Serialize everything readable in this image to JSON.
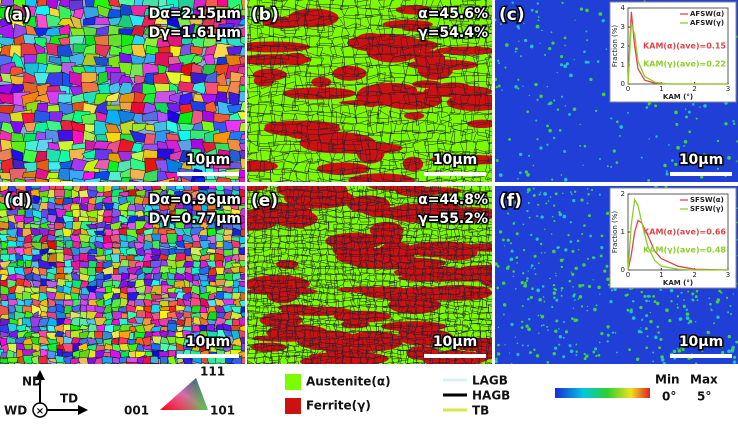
{
  "panels": [
    {
      "label": "(a)",
      "notes": [
        "Dα=2.15μm",
        "Dγ=1.61μm"
      ],
      "scale_bar": "10μm"
    },
    {
      "label": "(b)",
      "notes": [
        "α=45.6%",
        "γ=54.4%"
      ],
      "scale_bar": "10μm"
    },
    {
      "label": "(c)",
      "scale_bar": "10μm",
      "inset": {
        "type": "line",
        "x_label": "KAM (°)",
        "y_label": "Fraction (%)",
        "x": [
          0,
          0.1,
          0.2,
          0.3,
          0.5,
          0.8,
          1.2,
          2,
          3
        ],
        "series": [
          {
            "name": "AFSW(α)",
            "color": "#e0454a",
            "values": [
              0,
              3.8,
              2.0,
              0.8,
              0.2,
              0.05,
              0,
              0,
              0
            ]
          },
          {
            "name": "AFSW(γ)",
            "color": "#8ccf2a",
            "values": [
              0,
              3.2,
              2.6,
              1.2,
              0.4,
              0.1,
              0,
              0,
              0
            ]
          }
        ],
        "notes": [
          "KAM(α)(ave)=0.15",
          "KAM(γ)(ave)=0.22"
        ],
        "xlim": [
          0,
          3
        ],
        "ylim": [
          0,
          4
        ],
        "xticks": [
          0,
          1,
          2,
          3
        ],
        "yticks": [
          0,
          1,
          2,
          3,
          4
        ]
      }
    },
    {
      "label": "(d)",
      "notes": [
        "Dα=0.96μm",
        "Dγ=0.77μm"
      ],
      "scale_bar": "10μm"
    },
    {
      "label": "(e)",
      "notes": [
        "α=44.8%",
        "γ=55.2%"
      ],
      "scale_bar": "10μm"
    },
    {
      "label": "(f)",
      "scale_bar": "10μm",
      "inset": {
        "type": "line",
        "x_label": "KAM (°)",
        "y_label": "Fraction (%)",
        "x": [
          0,
          0.1,
          0.2,
          0.3,
          0.4,
          0.6,
          0.8,
          1.0,
          1.5,
          2,
          3
        ],
        "series": [
          {
            "name": "SFSW(α)",
            "color": "#e0454a",
            "values": [
              0,
              0.4,
              1.0,
              1.3,
              1.25,
              0.9,
              0.5,
              0.3,
              0.1,
              0.02,
              0
            ]
          },
          {
            "name": "SFSW(γ)",
            "color": "#8ccf2a",
            "values": [
              0,
              1.2,
              1.85,
              1.7,
              1.3,
              0.6,
              0.25,
              0.1,
              0.02,
              0,
              0
            ]
          }
        ],
        "notes": [
          "KAM(α)(ave)=0.66",
          "KAM(γ)(ave)=0.48"
        ],
        "xlim": [
          0,
          3
        ],
        "ylim": [
          0,
          2
        ],
        "xticks": [
          0,
          1,
          2,
          3
        ],
        "yticks": [
          0,
          1,
          2
        ]
      }
    }
  ],
  "legend": {
    "axes": [
      "ND",
      "TD",
      "WD"
    ],
    "ipf": [
      "111",
      "001",
      "101"
    ],
    "phases": [
      {
        "label": "Austenite(α)",
        "color": "#7cfc00"
      },
      {
        "label": "Ferrite(γ)",
        "color": "#cc1111"
      }
    ],
    "boundaries": [
      {
        "label": "LAGB",
        "color": "#d8f0f8"
      },
      {
        "label": "HAGB",
        "color": "#000000"
      },
      {
        "label": "TB",
        "color": "#d6e84a"
      }
    ],
    "kam": [
      "Min",
      "Max",
      "0°",
      "5°"
    ]
  }
}
